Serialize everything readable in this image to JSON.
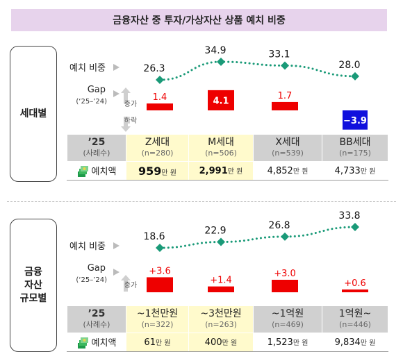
{
  "title": "금융자산 중 투자/가상자산 상품 예치 비중",
  "colors": {
    "title_bg": "#e7d3ec",
    "dots": "#1a9a78",
    "bar_pos": "#ee0000",
    "bar_neg": "#1010dd",
    "highlight": "#fffacc",
    "header_bg": "#d0d0d0",
    "neg_label_bg": "#1010dd"
  },
  "common": {
    "deposit_label": "예치 비중",
    "gap_label": "Gap",
    "gap_period": "(‘25–’24)",
    "increase": "증가",
    "decrease": "하락",
    "year_label": "’25",
    "sample_label": "(사례수)",
    "amount_label": "예치액",
    "amount_unit": "만 원"
  },
  "sections": [
    {
      "label": [
        "세대별"
      ],
      "columns": [
        "Z세대",
        "M세대",
        "X세대",
        "BB세대"
      ],
      "samples": [
        "(n=280)",
        "(n=506)",
        "(n=539)",
        "(n=175)"
      ],
      "amounts": [
        "959",
        "2,991",
        "4,852",
        "4,733"
      ],
      "highlight": [
        true,
        true,
        false,
        false
      ]
    },
    {
      "label": [
        "금융",
        "자산",
        "규모별"
      ],
      "columns": [
        "~1천만원",
        "~3천만원",
        "~1억원",
        "1억원~"
      ],
      "samples": [
        "(n=322)",
        "(n=263)",
        "(n=469)",
        "(n=446)"
      ],
      "amounts": [
        "61",
        "400",
        "1,523",
        "9,834"
      ],
      "highlight": [
        true,
        true,
        false,
        false
      ]
    }
  ],
  "chart_data": [
    {
      "type": "line",
      "categories": [
        "Z세대",
        "M세대",
        "X세대",
        "BB세대"
      ],
      "series": [
        {
          "name": "예치 비중",
          "values": [
            26.3,
            34.9,
            33.1,
            28.0
          ],
          "labels": [
            "26.3",
            "34.9",
            "33.1",
            "28.0"
          ]
        }
      ],
      "gap": {
        "values": [
          1.4,
          4.1,
          1.7,
          -3.9
        ],
        "labels": [
          "1.4",
          "4.1",
          "1.7",
          "−3.9"
        ]
      }
    },
    {
      "type": "line",
      "categories": [
        "~1천만원",
        "~3천만원",
        "~1억원",
        "1억원~"
      ],
      "series": [
        {
          "name": "예치 비중",
          "values": [
            18.6,
            22.9,
            26.8,
            33.8
          ],
          "labels": [
            "18.6",
            "22.9",
            "26.8",
            "33.8"
          ]
        }
      ],
      "gap": {
        "values": [
          3.6,
          1.4,
          3.0,
          0.6
        ],
        "labels": [
          "+3.6",
          "+1.4",
          "+3.0",
          "+0.6"
        ]
      }
    }
  ]
}
